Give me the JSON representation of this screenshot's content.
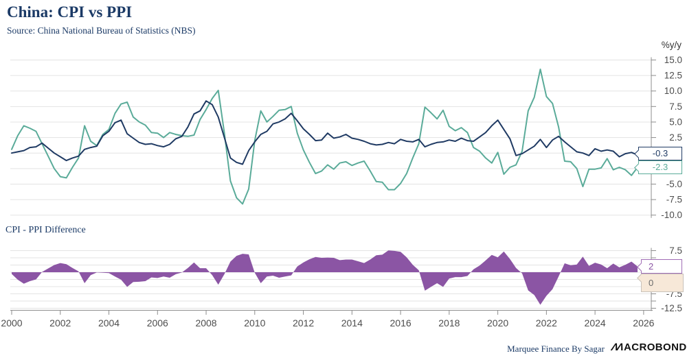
{
  "title": "China: CPI vs PPI",
  "subtitle": "Source: China National Bureau of Statistics (NBS)",
  "unit_label": "%y/y",
  "footer": {
    "credit": "Marquee Finance By Sagar",
    "brand_prefix": "ΛΛ",
    "brand": "ACROBOND"
  },
  "colors": {
    "cpi": "#1f3a63",
    "ppi": "#5aab99",
    "diff": "#8b55a4",
    "grid": "#e3e3e3",
    "axis": "#8c8c8c",
    "tick_text": "#4d4d4d",
    "title_text": "#1b3a66",
    "zero_box_bg": "#f7e8d8"
  },
  "chart_data": [
    {
      "type": "line",
      "title": "China: CPI vs PPI",
      "unit": "%y/y",
      "x_start": 2000,
      "x_step": 0.25,
      "xticks": [
        2000,
        2002,
        2004,
        2006,
        2008,
        2010,
        2012,
        2014,
        2016,
        2018,
        2020,
        2022,
        2024,
        2026
      ],
      "yticks": [
        15.0,
        12.5,
        10.0,
        7.5,
        5.0,
        2.5,
        0.0,
        -2.5,
        -5.0,
        -7.5,
        -10.0
      ],
      "ylim": [
        -10,
        15
      ],
      "legend_position": "none",
      "grid": true,
      "series": [
        {
          "name": "CPI",
          "color": "#1f3a63",
          "values": [
            0.0,
            0.2,
            0.4,
            0.9,
            1.0,
            1.6,
            0.8,
            0.0,
            -0.6,
            -1.2,
            -0.8,
            -0.5,
            0.6,
            0.9,
            1.1,
            2.8,
            3.5,
            4.9,
            5.3,
            3.1,
            2.4,
            1.7,
            1.4,
            1.5,
            1.2,
            1.0,
            1.4,
            2.3,
            2.7,
            4.2,
            6.3,
            6.8,
            8.4,
            7.8,
            5.8,
            2.5,
            -0.8,
            -1.5,
            -1.8,
            0.4,
            1.8,
            3.0,
            3.5,
            4.7,
            5.0,
            5.5,
            6.4,
            5.2,
            3.9,
            3.0,
            2.0,
            2.1,
            3.2,
            2.4,
            2.6,
            3.0,
            2.4,
            2.2,
            1.9,
            1.5,
            1.3,
            1.4,
            1.7,
            1.5,
            2.2,
            1.9,
            1.8,
            2.2,
            1.0,
            1.4,
            1.7,
            1.8,
            2.1,
            1.9,
            2.4,
            2.0,
            1.9,
            2.6,
            3.3,
            4.4,
            5.3,
            3.8,
            2.3,
            -0.4,
            -0.1,
            0.5,
            1.1,
            2.2,
            0.9,
            2.1,
            2.7,
            1.8,
            1.0,
            0.2,
            0.0,
            -0.4,
            0.7,
            0.3,
            0.5,
            0.3,
            -0.6,
            -0.1,
            0.1,
            -0.3
          ]
        },
        {
          "name": "PPI",
          "color": "#5aab99",
          "values": [
            0.6,
            2.8,
            4.4,
            4.0,
            3.5,
            1.5,
            -0.5,
            -2.5,
            -3.8,
            -4.0,
            -2.3,
            -0.8,
            4.4,
            1.9,
            1.2,
            3.0,
            3.8,
            6.4,
            7.9,
            8.2,
            5.8,
            5.0,
            4.5,
            3.3,
            3.2,
            2.5,
            3.3,
            3.0,
            2.8,
            2.7,
            2.9,
            5.4,
            7.0,
            8.8,
            10.1,
            3.2,
            -4.5,
            -7.2,
            -8.2,
            -5.8,
            2.0,
            6.8,
            5.0,
            5.9,
            6.9,
            7.0,
            7.5,
            3.2,
            0.5,
            -1.5,
            -3.3,
            -2.9,
            -1.9,
            -2.6,
            -1.6,
            -1.4,
            -2.0,
            -1.6,
            -1.3,
            -2.9,
            -4.6,
            -4.7,
            -5.9,
            -5.9,
            -4.9,
            -3.3,
            -0.8,
            1.5,
            7.4,
            6.5,
            5.5,
            6.9,
            4.3,
            3.6,
            4.1,
            3.3,
            0.9,
            0.3,
            -0.8,
            -1.6,
            0.1,
            -3.4,
            -2.3,
            -1.9,
            0.3,
            6.8,
            9.0,
            13.5,
            9.1,
            8.0,
            4.2,
            -1.3,
            -1.4,
            -2.5,
            -5.4,
            -2.6,
            -2.6,
            -2.4,
            -0.9,
            -2.7,
            -2.3,
            -2.7,
            -3.6,
            -2.3
          ]
        }
      ],
      "end_labels": {
        "cpi": "-0.3",
        "ppi": "-2.3"
      }
    },
    {
      "type": "area",
      "title": "CPI - PPI Difference",
      "x_start": 2000,
      "x_step": 0.25,
      "series_formula": "CPI minus PPI (computed from panel 1 series)",
      "color": "#8b55a4",
      "yticks_minor": [
        7.5,
        5.0,
        2.5,
        0.0,
        -2.5,
        -5.0,
        -7.5,
        -10.0,
        -12.5
      ],
      "yticks_labeled": [
        7.5,
        -7.5,
        -12.5
      ],
      "ylim": [
        -12.5,
        7.5
      ],
      "grid": true,
      "end_labels": {
        "diff": "2",
        "zero": "0"
      }
    }
  ]
}
